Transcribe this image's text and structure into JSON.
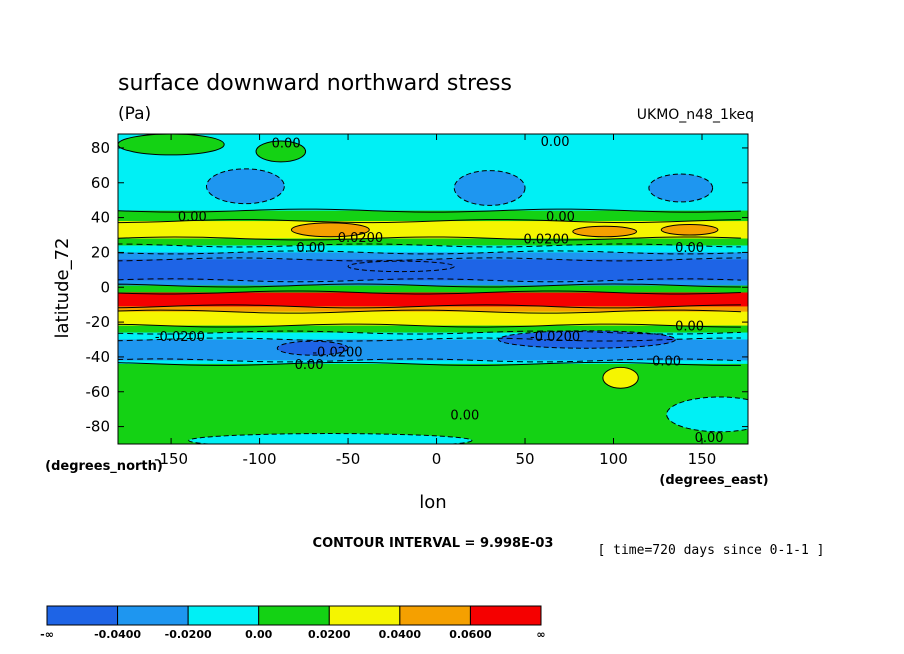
{
  "chart_data": {
    "type": "heatmap",
    "title": "surface downward northward stress",
    "units": "(Pa)",
    "dataset": "UKMO_n48_1keq",
    "xlabel": "lon",
    "ylabel": "latitude_72",
    "x_axis_note": "(degrees_east)",
    "y_axis_note": "(degrees_north)",
    "xlim": [
      -180,
      176
    ],
    "ylim": [
      -90,
      88
    ],
    "x_ticks": [
      -150,
      -100,
      -50,
      0,
      50,
      100,
      150
    ],
    "x_tick_labels": [
      "-150",
      "-100",
      "-50",
      "0",
      "50",
      "100",
      "150"
    ],
    "y_ticks": [
      80,
      60,
      40,
      20,
      0,
      -20,
      -40,
      -60,
      -80
    ],
    "y_tick_labels": [
      "80",
      "60",
      "40",
      "20",
      "0",
      "-20",
      "-40",
      "-60",
      "-80"
    ],
    "contour_interval": "CONTOUR INTERVAL = 9.998E-03",
    "time_note": "[ time=720 days since 0-1-1 ]",
    "color_levels": [
      {
        "range": "<-0.0400",
        "color": "#1e64e6"
      },
      {
        "range": "-0.0400 to -0.0200",
        "color": "#1e96f0"
      },
      {
        "range": "-0.0200 to 0.00",
        "color": "#00f0f5"
      },
      {
        "range": "0.00 to 0.0200",
        "color": "#14d214"
      },
      {
        "range": "0.0200 to 0.0400",
        "color": "#f5f500"
      },
      {
        "range": "0.0400 to 0.0600",
        "color": "#f5a000"
      },
      {
        "range": ">0.0600",
        "color": "#f50000"
      }
    ],
    "legend_labels": [
      "-∞",
      "-0.0400",
      "-0.0200",
      "0.00",
      "0.0200",
      "0.0400",
      "0.0600",
      "∞"
    ],
    "latitude_bands": [
      {
        "from": 88,
        "to": 44,
        "level": 2
      },
      {
        "from": 44,
        "to": 38,
        "level": 3
      },
      {
        "from": 38,
        "to": 28,
        "level": 4
      },
      {
        "from": 28,
        "to": 24,
        "level": 3
      },
      {
        "from": 24,
        "to": 20,
        "level": 2
      },
      {
        "from": 20,
        "to": 16,
        "level": 1
      },
      {
        "from": 16,
        "to": 4,
        "level": 0
      },
      {
        "from": 4,
        "to": 1,
        "level": 1
      },
      {
        "from": 1,
        "to": -3,
        "level": 3
      },
      {
        "from": -3,
        "to": -11,
        "level": 6
      },
      {
        "from": -11,
        "to": -14,
        "level": 5
      },
      {
        "from": -14,
        "to": -22,
        "level": 4
      },
      {
        "from": -22,
        "to": -26,
        "level": 3
      },
      {
        "from": -26,
        "to": -30,
        "level": 2
      },
      {
        "from": -30,
        "to": -42,
        "level": 1
      },
      {
        "from": -42,
        "to": -44,
        "level": 2
      },
      {
        "from": -44,
        "to": -90,
        "level": 3
      }
    ],
    "contour_labels": [
      {
        "text": "0.00",
        "lon": -85,
        "lat": 83
      },
      {
        "text": "0.00",
        "lon": 67,
        "lat": 84
      },
      {
        "text": "0.00",
        "lon": -138,
        "lat": 41
      },
      {
        "text": "0.00",
        "lon": 70,
        "lat": 41
      },
      {
        "text": "0.0200",
        "lon": -43,
        "lat": 29
      },
      {
        "text": "0.0200",
        "lon": 62,
        "lat": 28
      },
      {
        "text": "0.00",
        "lon": -71,
        "lat": 23
      },
      {
        "text": "0.00",
        "lon": 143,
        "lat": 23
      },
      {
        "text": "-0.0200",
        "lon": -145,
        "lat": -28
      },
      {
        "text": "-0.0200",
        "lon": 67,
        "lat": -28
      },
      {
        "text": "-0.0200",
        "lon": -56,
        "lat": -37
      },
      {
        "text": "0.00",
        "lon": 143,
        "lat": -22
      },
      {
        "text": "0.00",
        "lon": -72,
        "lat": -44
      },
      {
        "text": "0.00",
        "lon": 130,
        "lat": -42
      },
      {
        "text": "0.00",
        "lon": 16,
        "lat": -73
      },
      {
        "text": "0.00",
        "lon": 154,
        "lat": -86
      }
    ]
  }
}
